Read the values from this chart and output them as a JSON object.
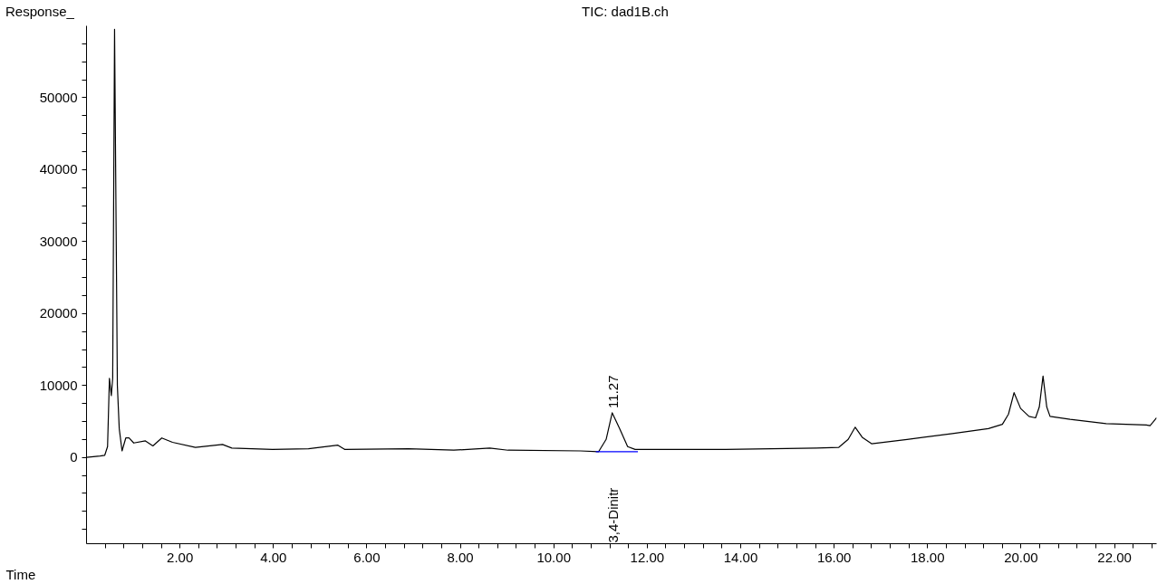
{
  "chart_data": {
    "type": "line",
    "title": "TIC: dad1B.ch",
    "xlabel": "Time",
    "ylabel": "Response_",
    "xlim": [
      0,
      22.9
    ],
    "ylim": [
      -12000,
      60000
    ],
    "xticks": [
      {
        "value": 0.4,
        "label": null
      },
      {
        "value": 0.8,
        "label": null
      },
      {
        "value": 1.2,
        "label": null
      },
      {
        "value": 1.6,
        "label": null
      },
      {
        "value": 2,
        "label": "2.00"
      },
      {
        "value": 2.4,
        "label": null
      },
      {
        "value": 2.8,
        "label": null
      },
      {
        "value": 3.2,
        "label": null
      },
      {
        "value": 3.6,
        "label": null
      },
      {
        "value": 4,
        "label": "4.00"
      },
      {
        "value": 4.4,
        "label": null
      },
      {
        "value": 4.8,
        "label": null
      },
      {
        "value": 5.2,
        "label": null
      },
      {
        "value": 5.6,
        "label": null
      },
      {
        "value": 6,
        "label": "6.00"
      },
      {
        "value": 6.4,
        "label": null
      },
      {
        "value": 6.8,
        "label": null
      },
      {
        "value": 7.2,
        "label": null
      },
      {
        "value": 7.6,
        "label": null
      },
      {
        "value": 8,
        "label": "8.00"
      },
      {
        "value": 8.4,
        "label": null
      },
      {
        "value": 8.8,
        "label": null
      },
      {
        "value": 9.2,
        "label": null
      },
      {
        "value": 9.6,
        "label": null
      },
      {
        "value": 10,
        "label": "10.00"
      },
      {
        "value": 10.4,
        "label": null
      },
      {
        "value": 10.8,
        "label": null
      },
      {
        "value": 11.2,
        "label": null
      },
      {
        "value": 11.6,
        "label": null
      },
      {
        "value": 12,
        "label": "12.00"
      },
      {
        "value": 12.4,
        "label": null
      },
      {
        "value": 12.8,
        "label": null
      },
      {
        "value": 13.2,
        "label": null
      },
      {
        "value": 13.6,
        "label": null
      },
      {
        "value": 14,
        "label": "14.00"
      },
      {
        "value": 14.4,
        "label": null
      },
      {
        "value": 14.8,
        "label": null
      },
      {
        "value": 15.2,
        "label": null
      },
      {
        "value": 15.6,
        "label": null
      },
      {
        "value": 16,
        "label": "16.00"
      },
      {
        "value": 16.4,
        "label": null
      },
      {
        "value": 16.8,
        "label": null
      },
      {
        "value": 17.2,
        "label": null
      },
      {
        "value": 17.6,
        "label": null
      },
      {
        "value": 18,
        "label": "18.00"
      },
      {
        "value": 18.4,
        "label": null
      },
      {
        "value": 18.8,
        "label": null
      },
      {
        "value": 19.2,
        "label": null
      },
      {
        "value": 19.6,
        "label": null
      },
      {
        "value": 20,
        "label": "20.00"
      },
      {
        "value": 20.4,
        "label": null
      },
      {
        "value": 20.8,
        "label": null
      },
      {
        "value": 21.2,
        "label": null
      },
      {
        "value": 21.6,
        "label": null
      },
      {
        "value": 22,
        "label": "22.00"
      },
      {
        "value": 22.4,
        "label": null
      },
      {
        "value": 22.8,
        "label": null
      }
    ],
    "yticks": [
      {
        "value": -10000,
        "label": null
      },
      {
        "value": -7500,
        "label": null
      },
      {
        "value": -5000,
        "label": null
      },
      {
        "value": -2500,
        "label": null
      },
      0,
      {
        "value": 2500,
        "label": null
      },
      {
        "value": 5000,
        "label": null
      },
      {
        "value": 7500,
        "label": null
      },
      10000,
      {
        "value": 12500,
        "label": null
      },
      {
        "value": 15000,
        "label": null
      },
      {
        "value": 17500,
        "label": null
      },
      20000,
      {
        "value": 22500,
        "label": null
      },
      {
        "value": 25000,
        "label": null
      },
      {
        "value": 27500,
        "label": null
      },
      30000,
      {
        "value": 32500,
        "label": null
      },
      {
        "value": 35000,
        "label": null
      },
      {
        "value": 37500,
        "label": null
      },
      40000,
      {
        "value": 42500,
        "label": null
      },
      {
        "value": 45000,
        "label": null
      },
      {
        "value": 47500,
        "label": null
      },
      50000,
      {
        "value": 52500,
        "label": null
      },
      {
        "value": 55000,
        "label": null
      },
      {
        "value": 57500,
        "label": null
      }
    ],
    "grid": false,
    "marker": "none",
    "line_style": "solid",
    "series": [
      {
        "color": "#000000",
        "x": [
          0,
          0.29,
          0.39,
          0.45,
          0.49,
          0.53,
          0.56,
          0.6,
          0.66,
          0.7,
          0.76,
          0.84,
          0.91,
          1.01,
          1.26,
          1.42,
          1.61,
          1.84,
          2.33,
          2.91,
          3.11,
          3.98,
          4.75,
          5.38,
          5.53,
          6.89,
          7.86,
          8.63,
          9.02,
          10.57,
          10.96,
          11.12,
          11.25,
          11.41,
          11.58,
          11.74,
          13.68,
          15.62,
          16.1,
          16.3,
          16.45,
          16.6,
          16.8,
          17.56,
          18.53,
          19.3,
          19.6,
          19.73,
          19.85,
          19.99,
          20.17,
          20.31,
          20.39,
          20.47,
          20.55,
          20.62,
          21.05,
          21.82,
          22.68,
          22.76,
          22.9
        ],
        "values": [
          0,
          200,
          300,
          1500,
          11000,
          8600,
          11000,
          59500,
          10000,
          4000,
          900,
          2700,
          2700,
          2000,
          2300,
          1600,
          2700,
          2100,
          1400,
          1800,
          1300,
          1100,
          1200,
          1700,
          1100,
          1200,
          1000,
          1300,
          1000,
          900,
          800,
          2500,
          6200,
          4000,
          1500,
          1100,
          1100,
          1300,
          1400,
          2500,
          4200,
          2800,
          1900,
          2500,
          3300,
          4000,
          4600,
          6000,
          9000,
          6800,
          5700,
          5500,
          7000,
          11300,
          7000,
          5700,
          5300,
          4700,
          4500,
          4400,
          5500
        ]
      },
      {
        "color": "#0000ff",
        "x": [
          10.9,
          11.8
        ],
        "values": [
          800,
          800
        ]
      }
    ],
    "annotations": [
      {
        "text": "11.27",
        "x": 11.27,
        "y": 6200
      },
      "3,4-Dinitr"
    ]
  }
}
